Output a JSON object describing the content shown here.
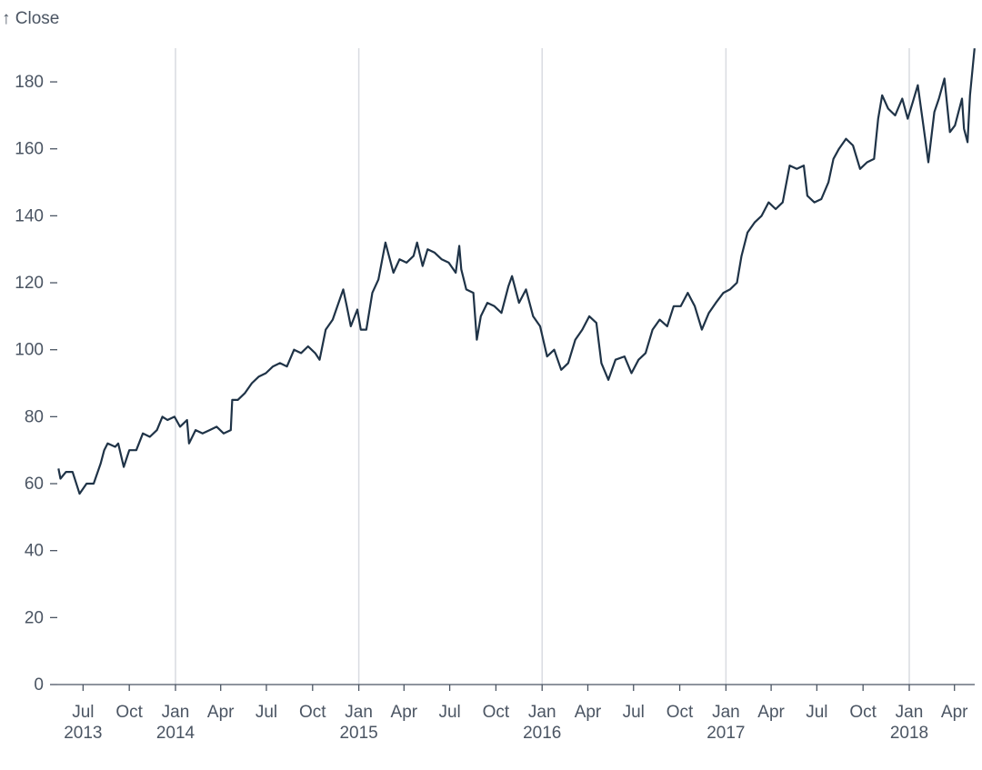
{
  "chart_data": {
    "type": "line",
    "title": "",
    "ylabel": "↑ Close",
    "xlabel": "",
    "ylim": [
      0,
      190
    ],
    "yticks": [
      0,
      20,
      40,
      60,
      80,
      100,
      120,
      140,
      160,
      180
    ],
    "xlim": [
      "2013-05-13",
      "2018-05-11"
    ],
    "xticks": [
      {
        "date": "2013-07-01",
        "month": "Jul",
        "year": "2013"
      },
      {
        "date": "2013-10-01",
        "month": "Oct",
        "year": ""
      },
      {
        "date": "2014-01-01",
        "month": "Jan",
        "year": "2014"
      },
      {
        "date": "2014-04-01",
        "month": "Apr",
        "year": ""
      },
      {
        "date": "2014-07-01",
        "month": "Jul",
        "year": ""
      },
      {
        "date": "2014-10-01",
        "month": "Oct",
        "year": ""
      },
      {
        "date": "2015-01-01",
        "month": "Jan",
        "year": "2015"
      },
      {
        "date": "2015-04-01",
        "month": "Apr",
        "year": ""
      },
      {
        "date": "2015-07-01",
        "month": "Jul",
        "year": ""
      },
      {
        "date": "2015-10-01",
        "month": "Oct",
        "year": ""
      },
      {
        "date": "2016-01-01",
        "month": "Jan",
        "year": "2016"
      },
      {
        "date": "2016-04-01",
        "month": "Apr",
        "year": ""
      },
      {
        "date": "2016-07-01",
        "month": "Jul",
        "year": ""
      },
      {
        "date": "2016-10-01",
        "month": "Oct",
        "year": ""
      },
      {
        "date": "2017-01-01",
        "month": "Jan",
        "year": "2017"
      },
      {
        "date": "2017-04-01",
        "month": "Apr",
        "year": ""
      },
      {
        "date": "2017-07-01",
        "month": "Jul",
        "year": ""
      },
      {
        "date": "2017-10-01",
        "month": "Oct",
        "year": ""
      },
      {
        "date": "2018-01-01",
        "month": "Jan",
        "year": "2018"
      },
      {
        "date": "2018-04-01",
        "month": "Apr",
        "year": ""
      }
    ],
    "grid": "vertical lines at January",
    "colors": {
      "line": "#1f3347",
      "grid": "#d9dce1",
      "axis": "#4b5563"
    },
    "series": [
      {
        "x": [
          "2013-05-13",
          "2013-05-17",
          "2013-05-28",
          "2013-06-10",
          "2013-06-24",
          "2013-07-08",
          "2013-07-22",
          "2013-08-05",
          "2013-08-12",
          "2013-08-19",
          "2013-09-03",
          "2013-09-09",
          "2013-09-20",
          "2013-10-01",
          "2013-10-15",
          "2013-10-28",
          "2013-11-11",
          "2013-11-25",
          "2013-12-06",
          "2013-12-16",
          "2013-12-30",
          "2014-01-10",
          "2014-01-24",
          "2014-01-28",
          "2014-02-10",
          "2014-02-24",
          "2014-03-10",
          "2014-03-24",
          "2014-04-07",
          "2014-04-21",
          "2014-04-24",
          "2014-05-05",
          "2014-05-19",
          "2014-06-02",
          "2014-06-16",
          "2014-06-30",
          "2014-07-14",
          "2014-07-28",
          "2014-08-11",
          "2014-08-25",
          "2014-09-08",
          "2014-09-22",
          "2014-10-06",
          "2014-10-15",
          "2014-10-27",
          "2014-11-10",
          "2014-11-24",
          "2014-12-01",
          "2014-12-08",
          "2014-12-16",
          "2014-12-29",
          "2015-01-05",
          "2015-01-16",
          "2015-01-28",
          "2015-02-09",
          "2015-02-23",
          "2015-03-02",
          "2015-03-11",
          "2015-03-23",
          "2015-04-06",
          "2015-04-20",
          "2015-04-27",
          "2015-05-08",
          "2015-05-18",
          "2015-06-01",
          "2015-06-15",
          "2015-06-29",
          "2015-07-13",
          "2015-07-20",
          "2015-07-24",
          "2015-08-03",
          "2015-08-17",
          "2015-08-24",
          "2015-09-01",
          "2015-09-14",
          "2015-09-28",
          "2015-10-12",
          "2015-10-26",
          "2015-11-02",
          "2015-11-16",
          "2015-11-30",
          "2015-12-14",
          "2015-12-28",
          "2016-01-11",
          "2016-01-25",
          "2016-02-08",
          "2016-02-22",
          "2016-03-07",
          "2016-03-21",
          "2016-04-04",
          "2016-04-18",
          "2016-04-28",
          "2016-05-12",
          "2016-05-26",
          "2016-06-13",
          "2016-06-27",
          "2016-07-11",
          "2016-07-25",
          "2016-08-08",
          "2016-08-22",
          "2016-09-06",
          "2016-09-19",
          "2016-10-03",
          "2016-10-17",
          "2016-10-31",
          "2016-11-14",
          "2016-11-28",
          "2016-12-12",
          "2016-12-27",
          "2017-01-09",
          "2017-01-23",
          "2017-02-01",
          "2017-02-13",
          "2017-02-27",
          "2017-03-13",
          "2017-03-27",
          "2017-04-10",
          "2017-04-24",
          "2017-05-08",
          "2017-05-22",
          "2017-06-05",
          "2017-06-12",
          "2017-06-26",
          "2017-07-10",
          "2017-07-24",
          "2017-08-03",
          "2017-08-14",
          "2017-08-28",
          "2017-09-11",
          "2017-09-25",
          "2017-10-09",
          "2017-10-23",
          "2017-10-31",
          "2017-11-08",
          "2017-11-20",
          "2017-12-04",
          "2017-12-18",
          "2017-12-29",
          "2018-01-08",
          "2018-01-18",
          "2018-01-29",
          "2018-02-08",
          "2018-02-20",
          "2018-03-01",
          "2018-03-12",
          "2018-03-23",
          "2018-04-02",
          "2018-04-16",
          "2018-04-20",
          "2018-04-27",
          "2018-05-02",
          "2018-05-11"
        ],
        "y": [
          64.5,
          61.5,
          63.5,
          63.5,
          57,
          60,
          60,
          66,
          70,
          72,
          71,
          72,
          65,
          70,
          70,
          75,
          74,
          76,
          80,
          79,
          80,
          77,
          79,
          72,
          76,
          75,
          76,
          77,
          75,
          76,
          85,
          85,
          87,
          90,
          92,
          93,
          95,
          96,
          95,
          100,
          99,
          101,
          99,
          97,
          106,
          109,
          115,
          118,
          113,
          107,
          112,
          106,
          106,
          117,
          121,
          132,
          128,
          123,
          127,
          126,
          128,
          132,
          125,
          130,
          129,
          127,
          126,
          123,
          131,
          124,
          118,
          117,
          103,
          110,
          114,
          113,
          111,
          119,
          122,
          114,
          118,
          110,
          107,
          98,
          100,
          94,
          96,
          103,
          106,
          110,
          108,
          96,
          91,
          97,
          98,
          93,
          97,
          99,
          106,
          109,
          107,
          113,
          113,
          117,
          113,
          106,
          111,
          114,
          117,
          118,
          120,
          128,
          135,
          138,
          140,
          144,
          142,
          144,
          155,
          154,
          155,
          146,
          144,
          145,
          150,
          157,
          160,
          163,
          161,
          154,
          156,
          157,
          169,
          176,
          172,
          170,
          175,
          169,
          174,
          179,
          167,
          156,
          171,
          175,
          181,
          165,
          167,
          175,
          166,
          162,
          176,
          190
        ]
      }
    ]
  }
}
